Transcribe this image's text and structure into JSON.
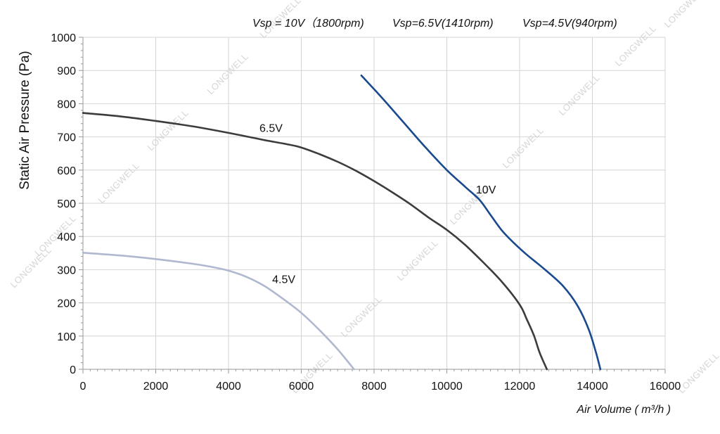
{
  "chart_data": {
    "type": "line",
    "header_labels": [
      "Vsp = 10V（1800rpm)",
      "Vsp=6.5V(1410rpm)",
      "Vsp=4.5V(940rpm)"
    ],
    "xlabel": "Air Volume ( m³/h )",
    "ylabel": "Static Air Pressure  (Pa)",
    "xlim": [
      0,
      16000
    ],
    "ylim": [
      0,
      1000
    ],
    "x_ticks": [
      0,
      2000,
      4000,
      6000,
      8000,
      10000,
      12000,
      14000,
      16000
    ],
    "y_ticks": [
      0,
      100,
      200,
      300,
      400,
      500,
      600,
      700,
      800,
      900,
      1000
    ],
    "grid": true,
    "legend": "none",
    "watermark": "LONGWELL",
    "series": [
      {
        "name": "10V",
        "color": "#1a4a8e",
        "x": [
          7650,
          8200,
          8800,
          9400,
          10000,
          10500,
          10900,
          11200,
          11500,
          11800,
          12200,
          12700,
          13200,
          13600,
          13900,
          14100,
          14220
        ],
        "y": [
          885,
          820,
          745,
          670,
          600,
          550,
          510,
          465,
          420,
          385,
          345,
          300,
          250,
          190,
          120,
          50,
          0
        ]
      },
      {
        "name": "6.5V",
        "color": "#3c3c3c",
        "x": [
          0,
          1000,
          2000,
          3000,
          4000,
          5000,
          5600,
          6000,
          6500,
          7000,
          7500,
          8000,
          8500,
          9000,
          9500,
          10000,
          10500,
          11000,
          11500,
          12000,
          12200,
          12400,
          12550,
          12750
        ],
        "y": [
          772,
          762,
          748,
          732,
          712,
          690,
          678,
          668,
          648,
          625,
          598,
          567,
          533,
          497,
          457,
          420,
          375,
          322,
          265,
          195,
          150,
          100,
          50,
          0
        ]
      },
      {
        "name": "4.5V",
        "color": "#b0b8d0",
        "x": [
          0,
          1000,
          2000,
          3000,
          3600,
          4000,
          4500,
          5000,
          5500,
          6000,
          6500,
          7000,
          7450
        ],
        "y": [
          351,
          343,
          332,
          318,
          307,
          297,
          278,
          250,
          212,
          170,
          118,
          60,
          0
        ]
      }
    ],
    "annotations": [
      {
        "text": "10V",
        "x": 10800,
        "y": 530
      },
      {
        "text": "6.5V",
        "x": 4850,
        "y": 715
      },
      {
        "text": "4.5V",
        "x": 5200,
        "y": 260
      }
    ]
  }
}
